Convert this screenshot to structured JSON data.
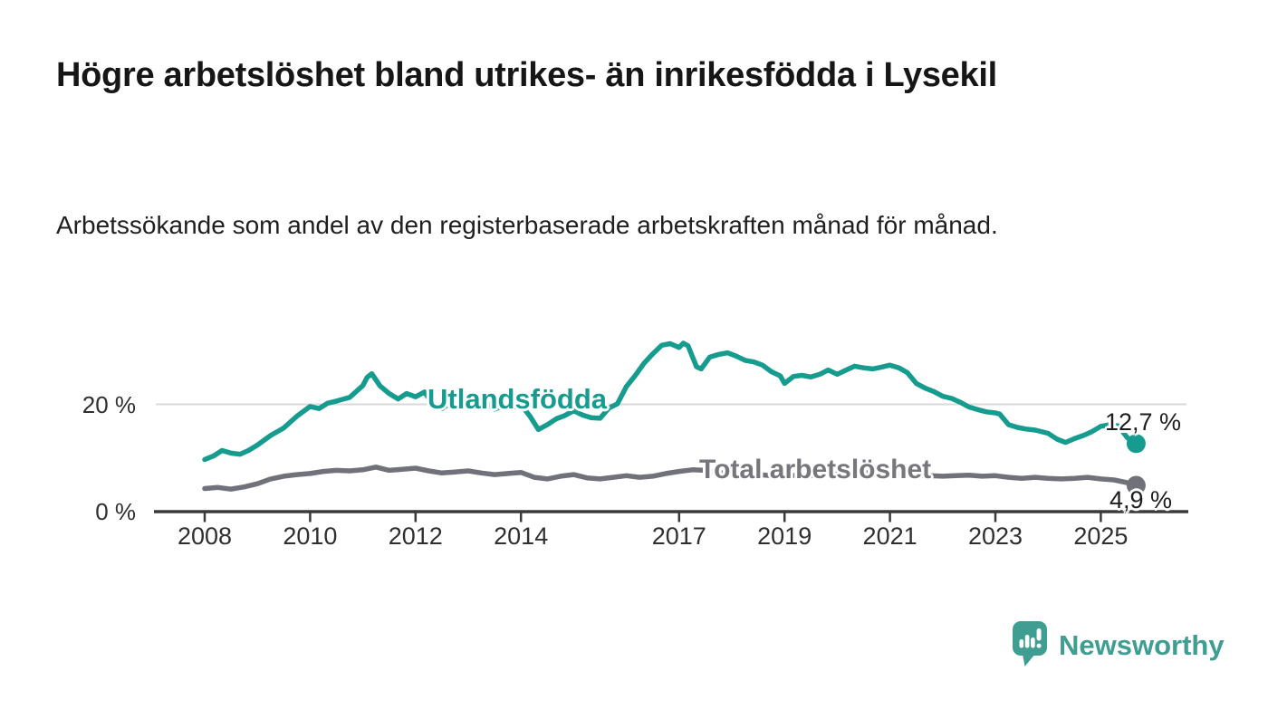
{
  "header": {
    "title": "Högre arbetslöshet bland utrikes- än inrikesfödda i Lysekil",
    "subtitle": "Arbetssökande som andel av den registerbaserade arbetskraften månad för månad."
  },
  "chart_data": {
    "type": "line",
    "title": "Högre arbetslöshet bland utrikes- än inrikesfödda i Lysekil",
    "subtitle": "Arbetssökande som andel av den registerbaserade arbetskraften månad för månad.",
    "unit": "%",
    "xlim": [
      2007.05,
      2026.45
    ],
    "ylim": [
      0,
      36.5
    ],
    "grid": "single horizontal gridline at 20 %",
    "legend_position": "inline-labels-on-lines",
    "axis_color": "#3a3a3a",
    "grid_color": "#d9d9d9",
    "tick_label_color": "#2f2f2f",
    "end_label_color": "#1d1d1d",
    "x_ticks": [
      {
        "value": 2008,
        "label": "2008"
      },
      {
        "value": 2010,
        "label": "2010"
      },
      {
        "value": 2012,
        "label": "2012"
      },
      {
        "value": 2014,
        "label": "2014"
      },
      {
        "value": 2017,
        "label": "2017"
      },
      {
        "value": 2019,
        "label": "2019"
      },
      {
        "value": 2021,
        "label": "2021"
      },
      {
        "value": 2023,
        "label": "2023"
      },
      {
        "value": 2025,
        "label": "2025"
      }
    ],
    "y_ticks": [
      {
        "value": 0,
        "label": "0 %"
      },
      {
        "value": 20,
        "label": "20 %"
      }
    ],
    "series": [
      {
        "name": "Utlandsfödda",
        "color": "#169c8e",
        "end_label": "12,7 %",
        "end_value": 12.7,
        "points": [
          [
            2008.0,
            9.7
          ],
          [
            2008.17,
            10.4
          ],
          [
            2008.33,
            11.4
          ],
          [
            2008.5,
            10.9
          ],
          [
            2008.67,
            10.7
          ],
          [
            2008.83,
            11.4
          ],
          [
            2009.0,
            12.4
          ],
          [
            2009.25,
            14.2
          ],
          [
            2009.5,
            15.6
          ],
          [
            2009.75,
            17.8
          ],
          [
            2010.0,
            19.6
          ],
          [
            2010.17,
            19.2
          ],
          [
            2010.33,
            20.2
          ],
          [
            2010.5,
            20.6
          ],
          [
            2010.75,
            21.3
          ],
          [
            2011.0,
            23.5
          ],
          [
            2011.08,
            25.0
          ],
          [
            2011.17,
            25.7
          ],
          [
            2011.33,
            23.4
          ],
          [
            2011.5,
            22.0
          ],
          [
            2011.67,
            21.0
          ],
          [
            2011.83,
            22.0
          ],
          [
            2012.0,
            21.4
          ],
          [
            2012.17,
            22.3
          ],
          [
            2012.33,
            20.0
          ],
          [
            2012.5,
            19.2
          ],
          [
            2012.67,
            20.3
          ],
          [
            2012.83,
            19.7
          ],
          [
            2013.0,
            20.9
          ],
          [
            2013.17,
            20.3
          ],
          [
            2013.33,
            20.4
          ],
          [
            2013.5,
            19.1
          ],
          [
            2013.67,
            19.7
          ],
          [
            2013.83,
            19.4
          ],
          [
            2014.0,
            19.9
          ],
          [
            2014.17,
            17.8
          ],
          [
            2014.33,
            15.3
          ],
          [
            2014.5,
            16.2
          ],
          [
            2014.67,
            17.3
          ],
          [
            2014.83,
            17.9
          ],
          [
            2015.0,
            18.8
          ],
          [
            2015.17,
            18.0
          ],
          [
            2015.33,
            17.5
          ],
          [
            2015.5,
            17.4
          ],
          [
            2015.67,
            19.3
          ],
          [
            2015.83,
            20.1
          ],
          [
            2016.0,
            23.3
          ],
          [
            2016.17,
            25.4
          ],
          [
            2016.33,
            27.6
          ],
          [
            2016.5,
            29.4
          ],
          [
            2016.67,
            31.0
          ],
          [
            2016.83,
            31.3
          ],
          [
            2017.0,
            30.6
          ],
          [
            2017.08,
            31.4
          ],
          [
            2017.17,
            30.9
          ],
          [
            2017.33,
            27.0
          ],
          [
            2017.42,
            26.6
          ],
          [
            2017.58,
            28.8
          ],
          [
            2017.75,
            29.3
          ],
          [
            2017.92,
            29.6
          ],
          [
            2018.08,
            29.0
          ],
          [
            2018.25,
            28.2
          ],
          [
            2018.42,
            27.9
          ],
          [
            2018.58,
            27.3
          ],
          [
            2018.75,
            26.1
          ],
          [
            2018.92,
            25.3
          ],
          [
            2019.0,
            23.9
          ],
          [
            2019.17,
            25.2
          ],
          [
            2019.33,
            25.4
          ],
          [
            2019.5,
            25.1
          ],
          [
            2019.67,
            25.6
          ],
          [
            2019.83,
            26.4
          ],
          [
            2020.0,
            25.6
          ],
          [
            2020.17,
            26.4
          ],
          [
            2020.33,
            27.1
          ],
          [
            2020.5,
            26.8
          ],
          [
            2020.67,
            26.6
          ],
          [
            2020.83,
            26.9
          ],
          [
            2021.0,
            27.3
          ],
          [
            2021.17,
            26.8
          ],
          [
            2021.33,
            25.9
          ],
          [
            2021.5,
            23.9
          ],
          [
            2021.67,
            23.0
          ],
          [
            2021.83,
            22.4
          ],
          [
            2022.0,
            21.5
          ],
          [
            2022.17,
            21.1
          ],
          [
            2022.33,
            20.4
          ],
          [
            2022.5,
            19.5
          ],
          [
            2022.67,
            19.0
          ],
          [
            2022.83,
            18.6
          ],
          [
            2023.0,
            18.4
          ],
          [
            2023.08,
            18.2
          ],
          [
            2023.25,
            16.2
          ],
          [
            2023.42,
            15.7
          ],
          [
            2023.58,
            15.4
          ],
          [
            2023.75,
            15.2
          ],
          [
            2024.0,
            14.6
          ],
          [
            2024.17,
            13.5
          ],
          [
            2024.33,
            12.9
          ],
          [
            2024.5,
            13.6
          ],
          [
            2024.67,
            14.2
          ],
          [
            2024.83,
            14.9
          ],
          [
            2025.0,
            15.9
          ],
          [
            2025.17,
            16.2
          ],
          [
            2025.33,
            16.0
          ],
          [
            2025.5,
            13.8
          ],
          [
            2025.67,
            12.7
          ]
        ]
      },
      {
        "name": "Total arbetslöshet",
        "color": "#71717a",
        "end_label": "4,9 %",
        "end_value": 4.9,
        "points": [
          [
            2008.0,
            4.3
          ],
          [
            2008.25,
            4.5
          ],
          [
            2008.5,
            4.2
          ],
          [
            2008.75,
            4.6
          ],
          [
            2009.0,
            5.2
          ],
          [
            2009.25,
            6.1
          ],
          [
            2009.5,
            6.6
          ],
          [
            2009.75,
            6.9
          ],
          [
            2010.0,
            7.1
          ],
          [
            2010.25,
            7.5
          ],
          [
            2010.5,
            7.7
          ],
          [
            2010.75,
            7.6
          ],
          [
            2011.0,
            7.8
          ],
          [
            2011.25,
            8.3
          ],
          [
            2011.5,
            7.7
          ],
          [
            2011.75,
            7.9
          ],
          [
            2012.0,
            8.1
          ],
          [
            2012.25,
            7.6
          ],
          [
            2012.5,
            7.2
          ],
          [
            2012.75,
            7.4
          ],
          [
            2013.0,
            7.6
          ],
          [
            2013.25,
            7.2
          ],
          [
            2013.5,
            6.9
          ],
          [
            2013.75,
            7.1
          ],
          [
            2014.0,
            7.3
          ],
          [
            2014.25,
            6.4
          ],
          [
            2014.5,
            6.1
          ],
          [
            2014.75,
            6.6
          ],
          [
            2015.0,
            6.9
          ],
          [
            2015.25,
            6.3
          ],
          [
            2015.5,
            6.1
          ],
          [
            2015.75,
            6.4
          ],
          [
            2016.0,
            6.7
          ],
          [
            2016.25,
            6.4
          ],
          [
            2016.5,
            6.6
          ],
          [
            2016.75,
            7.1
          ],
          [
            2017.0,
            7.5
          ],
          [
            2017.25,
            7.8
          ],
          [
            2017.5,
            7.7
          ],
          [
            2017.75,
            7.3
          ],
          [
            2018.0,
            7.0
          ],
          [
            2018.25,
            6.8
          ],
          [
            2018.5,
            6.9
          ],
          [
            2018.75,
            6.7
          ],
          [
            2019.0,
            6.6
          ],
          [
            2019.25,
            6.8
          ],
          [
            2019.5,
            6.7
          ],
          [
            2019.75,
            6.9
          ],
          [
            2020.0,
            7.0
          ],
          [
            2020.25,
            7.4
          ],
          [
            2020.5,
            7.3
          ],
          [
            2020.75,
            7.1
          ],
          [
            2021.0,
            7.2
          ],
          [
            2021.25,
            7.0
          ],
          [
            2021.5,
            6.8
          ],
          [
            2021.75,
            6.7
          ],
          [
            2022.0,
            6.6
          ],
          [
            2022.25,
            6.7
          ],
          [
            2022.5,
            6.8
          ],
          [
            2022.75,
            6.6
          ],
          [
            2023.0,
            6.7
          ],
          [
            2023.25,
            6.4
          ],
          [
            2023.5,
            6.2
          ],
          [
            2023.75,
            6.4
          ],
          [
            2024.0,
            6.2
          ],
          [
            2024.25,
            6.1
          ],
          [
            2024.5,
            6.2
          ],
          [
            2024.75,
            6.4
          ],
          [
            2025.0,
            6.1
          ],
          [
            2025.25,
            5.9
          ],
          [
            2025.5,
            5.4
          ],
          [
            2025.67,
            4.9
          ]
        ]
      }
    ]
  },
  "branding": {
    "logo_text": "Newsworthy",
    "logo_color": "#3f9d92"
  }
}
